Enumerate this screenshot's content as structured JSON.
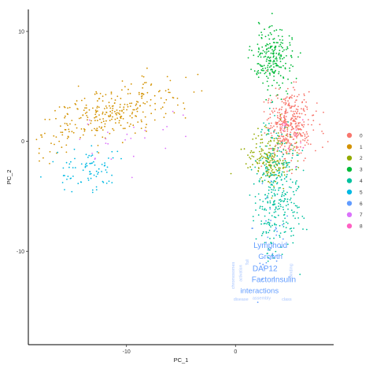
{
  "chart_data": {
    "type": "scatter",
    "xlabel": "PC_1",
    "ylabel": "PC_2",
    "xlim": [
      -19,
      9
    ],
    "ylim": [
      -18.5,
      12
    ],
    "x_ticks": [
      -10,
      0
    ],
    "y_ticks": [
      10,
      0,
      -10
    ],
    "grid": false,
    "legend_position": "right",
    "clusters": [
      {
        "name": "0",
        "color": "#F8766D",
        "center": [
          5.0,
          1.5
        ],
        "spread": [
          1.1,
          1.6
        ],
        "n": 380
      },
      {
        "name": "1",
        "color": "#D39200",
        "center": [
          -11.5,
          2.5
        ],
        "spread": [
          3.2,
          1.8
        ],
        "n": 300
      },
      {
        "name": "2",
        "color": "#93AA00",
        "center": [
          3.2,
          -1.5
        ],
        "spread": [
          1.1,
          1.3
        ],
        "n": 200
      },
      {
        "name": "3",
        "color": "#00BA38",
        "center": [
          3.5,
          7.5
        ],
        "spread": [
          0.9,
          1.5
        ],
        "n": 230
      },
      {
        "name": "4",
        "color": "#00C19F",
        "center": [
          3.8,
          -4.5
        ],
        "spread": [
          1.0,
          2.8
        ],
        "n": 330
      },
      {
        "name": "5",
        "color": "#00B9E3",
        "center": [
          -13.5,
          -2.5
        ],
        "spread": [
          1.6,
          1.0
        ],
        "n": 80
      },
      {
        "name": "6",
        "color": "#619CFF",
        "center": [
          3.0,
          -9.0
        ],
        "spread": [
          0.8,
          2.5
        ],
        "n": 30
      },
      {
        "name": "7",
        "color": "#DB72FB",
        "center": [
          -9.0,
          0.0
        ],
        "spread": [
          3.0,
          1.5
        ],
        "n": 25
      },
      {
        "name": "8",
        "color": "#FF61C3",
        "center": [
          5.0,
          1.0
        ],
        "spread": [
          1.0,
          1.0
        ],
        "n": 15
      }
    ],
    "word_cloud": [
      {
        "text": "Lymphoid",
        "color": "#619CFF"
      },
      {
        "text": "Growth",
        "color": "#619CFF"
      },
      {
        "text": "DAP12",
        "color": "#619CFF"
      },
      {
        "text": "Factor",
        "color": "#619CFF"
      },
      {
        "text": "Insulin",
        "color": "#619CFF"
      },
      {
        "text": "interactions",
        "color": "#619CFF"
      },
      {
        "text": "chromosomes",
        "color": "#A9C6FF"
      },
      {
        "text": "activation",
        "color": "#A9C6FF"
      },
      {
        "text": "Binding",
        "color": "#A9C6FF"
      },
      {
        "text": "Toll",
        "color": "#A9C6FF"
      },
      {
        "text": "disease",
        "color": "#A9C6FF"
      },
      {
        "text": "assembly",
        "color": "#A9C6FF"
      },
      {
        "text": "class",
        "color": "#A9C6FF"
      }
    ]
  }
}
